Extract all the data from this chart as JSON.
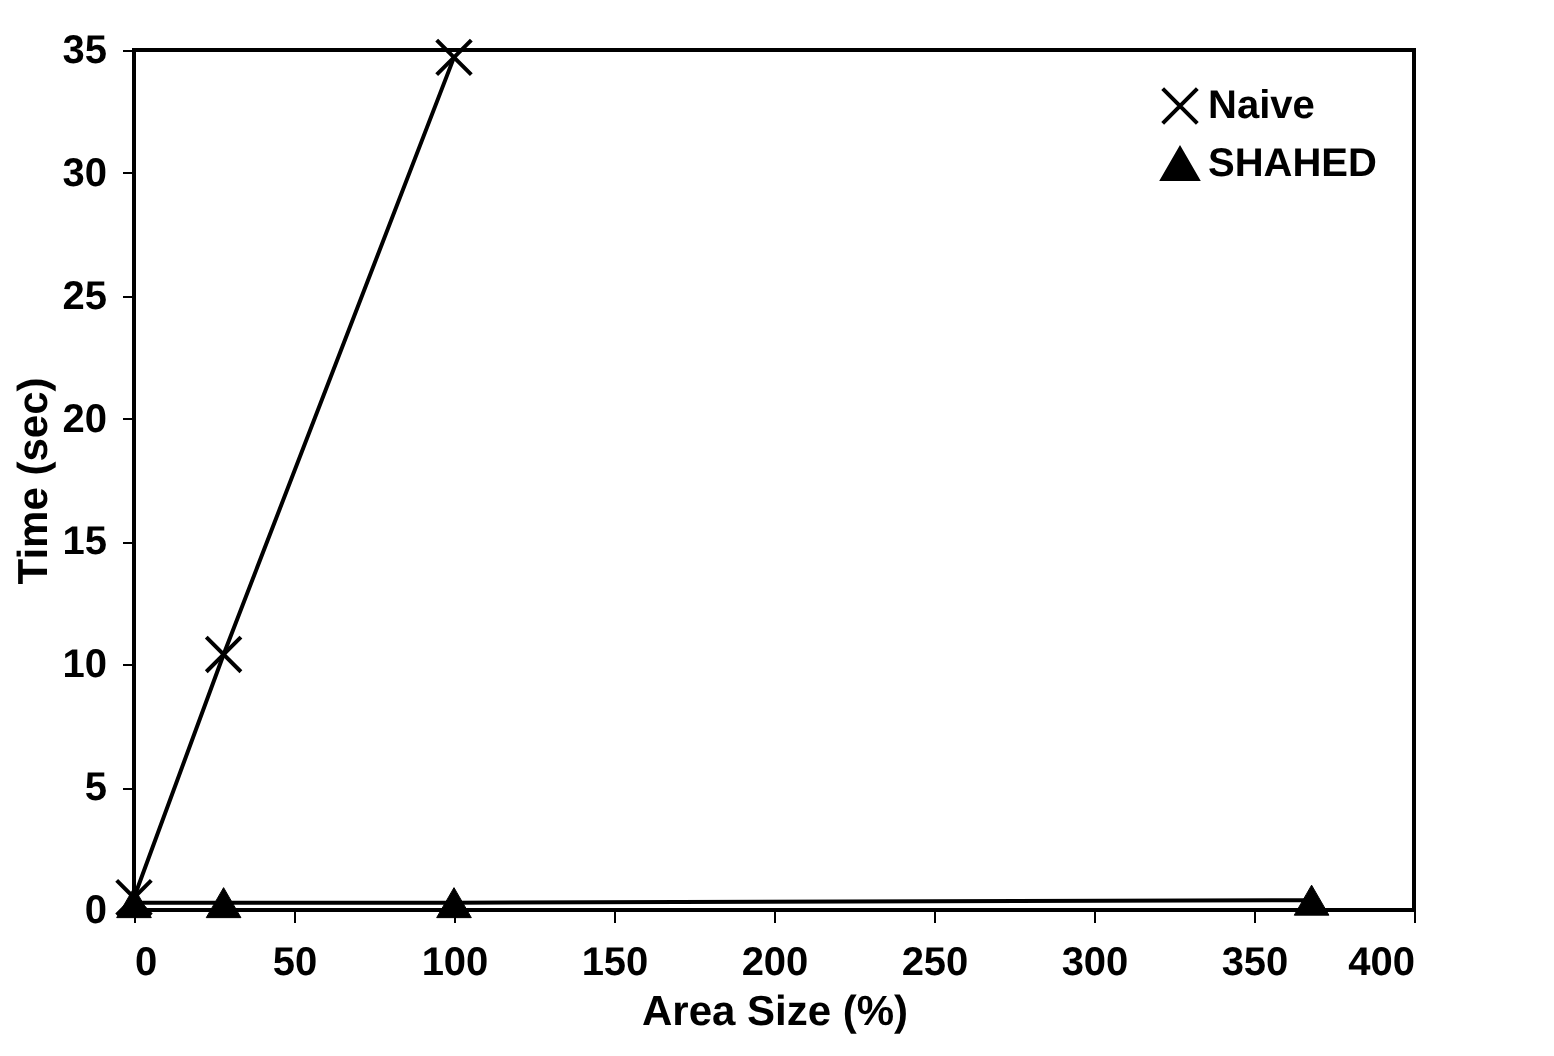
{
  "chart_data": {
    "type": "line",
    "xlabel": "Area Size (%)",
    "ylabel": "Time (sec)",
    "series": [
      {
        "name": "Naive",
        "color": "#000000",
        "marker": "cross",
        "x": [
          0,
          28,
          100
        ],
        "values": [
          0.5,
          10.4,
          34.7
        ]
      },
      {
        "name": "SHAHED",
        "color": "#000000",
        "marker": "triangle",
        "x": [
          0,
          28,
          100,
          368
        ],
        "values": [
          0.3,
          0.3,
          0.3,
          0.4
        ]
      }
    ],
    "xlim": [
      0,
      400
    ],
    "xticks": [
      0,
      50,
      100,
      150,
      200,
      250,
      300,
      350,
      400
    ],
    "ylim": [
      0,
      35
    ],
    "yticks": [
      0,
      5,
      10,
      15,
      20,
      25,
      30,
      35
    ],
    "grid": false,
    "legend": "top right",
    "line_style": "solid"
  }
}
